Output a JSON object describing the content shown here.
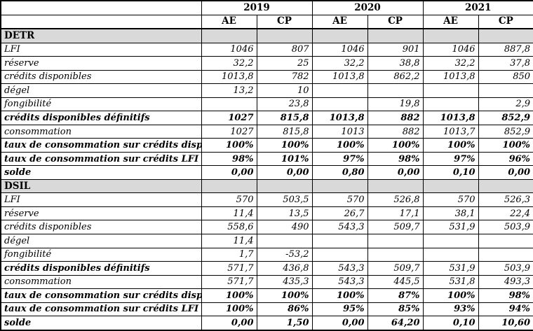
{
  "table": {
    "year_groups": [
      "2019",
      "2020",
      "2021"
    ],
    "sub_headers": [
      "AE",
      "CP"
    ],
    "section_bg_color": "#d9d9d9",
    "border_color": "#000000",
    "sections": [
      {
        "name": "DETR",
        "rows": [
          {
            "label": "LFI",
            "label_bold": false,
            "values_bold": false,
            "values": [
              "1046",
              "807",
              "1046",
              "901",
              "1046",
              "887,8"
            ]
          },
          {
            "label": "réserve",
            "label_bold": false,
            "values_bold": false,
            "values": [
              "32,2",
              "25",
              "32,2",
              "38,8",
              "32,2",
              "37,8"
            ]
          },
          {
            "label": "crédits disponibles",
            "label_bold": false,
            "values_bold": false,
            "values": [
              "1013,8",
              "782",
              "1013,8",
              "862,2",
              "1013,8",
              "850"
            ]
          },
          {
            "label": "dégel",
            "label_bold": false,
            "values_bold": false,
            "values": [
              "13,2",
              "10",
              "",
              "",
              "",
              ""
            ]
          },
          {
            "label": "fongibilité",
            "label_bold": false,
            "values_bold": false,
            "values": [
              "",
              "23,8",
              "",
              "19,8",
              "",
              "2,9"
            ]
          },
          {
            "label": "crédits disponibles définitifs",
            "label_bold": true,
            "values_bold": true,
            "values": [
              "1027",
              "815,8",
              "1013,8",
              "882",
              "1013,8",
              "852,9"
            ]
          },
          {
            "label": "consommation",
            "label_bold": false,
            "values_bold": false,
            "values": [
              "1027",
              "815,8",
              "1013",
              "882",
              "1013,7",
              "852,9"
            ]
          },
          {
            "label": "taux de consommation sur crédits disponibles",
            "label_bold": true,
            "values_bold": true,
            "values": [
              "100%",
              "100%",
              "100%",
              "100%",
              "100%",
              "100%"
            ]
          },
          {
            "label": "taux de consommation sur crédits LFI",
            "label_bold": true,
            "values_bold": true,
            "values": [
              "98%",
              "101%",
              "97%",
              "98%",
              "97%",
              "96%"
            ]
          },
          {
            "label": "solde",
            "label_bold": true,
            "values_bold": true,
            "values": [
              "0,00",
              "0,00",
              "0,80",
              "0,00",
              "0,10",
              "0,00"
            ]
          }
        ]
      },
      {
        "name": "DSIL",
        "rows": [
          {
            "label": "LFI",
            "label_bold": false,
            "values_bold": false,
            "values": [
              "570",
              "503,5",
              "570",
              "526,8",
              "570",
              "526,3"
            ]
          },
          {
            "label": "réserve",
            "label_bold": false,
            "values_bold": false,
            "values": [
              "11,4",
              "13,5",
              "26,7",
              "17,1",
              "38,1",
              "22,4"
            ]
          },
          {
            "label": "crédits disponibles",
            "label_bold": false,
            "values_bold": false,
            "values": [
              "558,6",
              "490",
              "543,3",
              "509,7",
              "531,9",
              "503,9"
            ]
          },
          {
            "label": "dégel",
            "label_bold": false,
            "values_bold": false,
            "values": [
              "11,4",
              "",
              "",
              "",
              "",
              ""
            ]
          },
          {
            "label": "fongibilité",
            "label_bold": false,
            "values_bold": false,
            "values": [
              "1,7",
              "-53,2",
              "",
              "",
              "",
              ""
            ]
          },
          {
            "label": "crédits disponibles définitifs",
            "label_bold": true,
            "values_bold": false,
            "values": [
              "571,7",
              "436,8",
              "543,3",
              "509,7",
              "531,9",
              "503,9"
            ]
          },
          {
            "label": "consommation",
            "label_bold": false,
            "values_bold": false,
            "values": [
              "571,7",
              "435,3",
              "543,3",
              "445,5",
              "531,8",
              "493,3"
            ]
          },
          {
            "label": "taux de consommation sur crédits disponibles",
            "label_bold": true,
            "values_bold": true,
            "values": [
              "100%",
              "100%",
              "100%",
              "87%",
              "100%",
              "98%"
            ]
          },
          {
            "label": "taux de consommation sur crédits LFI",
            "label_bold": true,
            "values_bold": true,
            "values": [
              "100%",
              "86%",
              "95%",
              "85%",
              "93%",
              "94%"
            ]
          },
          {
            "label": "solde",
            "label_bold": true,
            "values_bold": true,
            "values": [
              "0,00",
              "1,50",
              "0,00",
              "64,20",
              "0,10",
              "10,60"
            ]
          }
        ]
      }
    ]
  }
}
